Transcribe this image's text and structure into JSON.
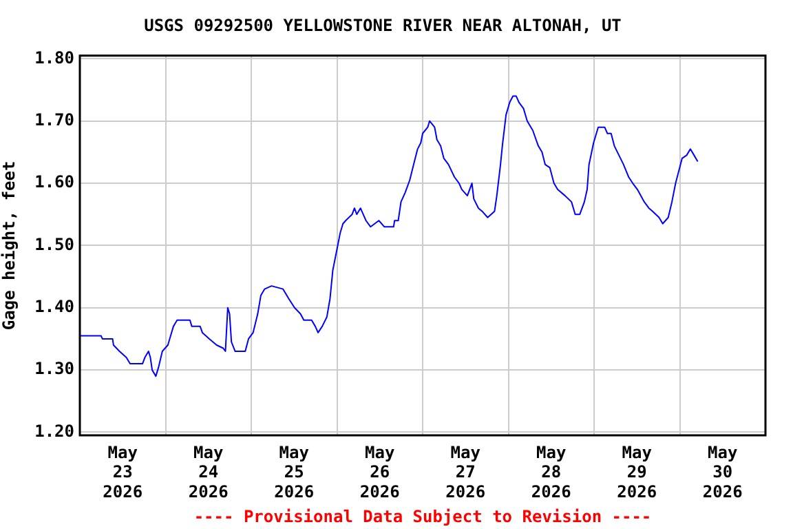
{
  "chart_data": {
    "type": "line",
    "title": "USGS 09292500 YELLOWSTONE RIVER NEAR ALTONAH, UT",
    "ylabel": "Gage height, feet",
    "annotations": [
      "---- Provisional Data Subject to Revision ----"
    ],
    "series": [
      {
        "color": "#0000ff",
        "x": [
          "2026-05-23T00:08",
          "2026-05-23T05:56",
          "2026-05-23T06:19",
          "2026-05-23T09:10",
          "2026-05-23T09:25",
          "2026-05-23T11:06",
          "2026-05-23T13:02",
          "2026-05-23T14:04",
          "2026-05-23T17:33",
          "2026-05-23T18:12",
          "2026-05-23T19:14",
          "2026-05-23T19:45",
          "2026-05-23T20:15",
          "2026-05-23T21:17",
          "2026-05-23T22:04",
          "2026-05-23T23:06",
          "2026-05-24T00:39",
          "2026-05-24T01:25",
          "2026-05-24T02:12",
          "2026-05-24T03:14",
          "2026-05-24T06:50",
          "2026-05-24T07:21",
          "2026-05-24T09:41",
          "2026-05-24T10:19",
          "2026-05-24T12:15",
          "2026-05-24T14:19",
          "2026-05-24T16:08",
          "2026-05-24T16:46",
          "2026-05-24T17:25",
          "2026-05-24T17:56",
          "2026-05-24T18:27",
          "2026-05-24T19:29",
          "2026-05-24T22:19",
          "2026-05-24T23:14",
          "2026-05-25T00:31",
          "2026-05-25T01:48",
          "2026-05-25T02:42",
          "2026-05-25T03:44",
          "2026-05-25T05:41",
          "2026-05-25T08:54",
          "2026-05-25T10:27",
          "2026-05-25T12:08",
          "2026-05-25T13:48",
          "2026-05-25T14:43",
          "2026-05-25T16:54",
          "2026-05-25T17:56",
          "2026-05-25T18:43",
          "2026-05-25T19:52",
          "2026-05-25T21:10",
          "2026-05-25T22:04",
          "2026-05-25T22:50",
          "2026-05-25T23:52",
          "2026-05-26T00:54",
          "2026-05-26T01:41",
          "2026-05-26T02:27",
          "2026-05-26T04:15",
          "2026-05-26T04:54",
          "2026-05-26T05:33",
          "2026-05-26T06:35",
          "2026-05-26T07:21",
          "2026-05-26T08:08",
          "2026-05-26T09:25",
          "2026-05-26T11:44",
          "2026-05-26T13:17",
          "2026-05-26T15:52",
          "2026-05-26T16:08",
          "2026-05-26T17:10",
          "2026-05-26T17:56",
          "2026-05-26T19:06",
          "2026-05-26T20:23",
          "2026-05-26T21:41",
          "2026-05-26T22:35",
          "2026-05-26T23:29",
          "2026-05-27T00:00",
          "2026-05-27T01:25",
          "2026-05-27T01:56",
          "2026-05-27T03:21",
          "2026-05-27T04:00",
          "2026-05-27T05:02",
          "2026-05-27T05:56",
          "2026-05-27T07:14",
          "2026-05-27T08:54",
          "2026-05-27T10:12",
          "2026-05-27T10:58",
          "2026-05-27T12:31",
          "2026-05-27T13:48",
          "2026-05-27T14:19",
          "2026-05-27T15:37",
          "2026-05-27T16:39",
          "2026-05-27T18:12",
          "2026-05-27T20:08",
          "2026-05-27T20:46",
          "2026-05-27T21:48",
          "2026-05-27T22:19",
          "2026-05-27T23:21",
          "2026-05-28T00:23",
          "2026-05-28T01:17",
          "2026-05-28T02:12",
          "2026-05-28T02:58",
          "2026-05-28T04:15",
          "2026-05-28T05:17",
          "2026-05-28T06:50",
          "2026-05-28T08:23",
          "2026-05-28T09:25",
          "2026-05-28T10:19",
          "2026-05-28T11:37",
          "2026-05-28T12:46",
          "2026-05-28T13:48",
          "2026-05-28T15:52",
          "2026-05-28T17:41",
          "2026-05-28T18:43",
          "2026-05-28T20:00",
          "2026-05-28T21:17",
          "2026-05-28T22:04",
          "2026-05-28T22:35",
          "2026-05-28T23:52",
          "2026-05-29T01:10",
          "2026-05-29T02:58",
          "2026-05-29T03:44",
          "2026-05-29T04:46",
          "2026-05-29T05:41",
          "2026-05-29T06:58",
          "2026-05-29T08:15",
          "2026-05-29T09:41",
          "2026-05-29T10:50",
          "2026-05-29T12:08",
          "2026-05-29T14:04",
          "2026-05-29T15:21",
          "2026-05-29T16:23",
          "2026-05-29T18:12",
          "2026-05-29T19:14",
          "2026-05-29T20:46",
          "2026-05-29T21:48",
          "2026-05-29T22:50",
          "2026-05-30T00:39",
          "2026-05-30T01:56",
          "2026-05-30T02:58",
          "2026-05-30T04:00",
          "2026-05-30T05:02"
        ],
        "values": [
          1.355,
          1.355,
          1.35,
          1.35,
          1.34,
          1.33,
          1.32,
          1.31,
          1.31,
          1.32,
          1.33,
          1.32,
          1.3,
          1.29,
          1.305,
          1.33,
          1.34,
          1.355,
          1.37,
          1.38,
          1.38,
          1.37,
          1.37,
          1.36,
          1.35,
          1.34,
          1.335,
          1.33,
          1.4,
          1.39,
          1.345,
          1.33,
          1.33,
          1.35,
          1.36,
          1.39,
          1.42,
          1.43,
          1.435,
          1.43,
          1.415,
          1.4,
          1.39,
          1.38,
          1.38,
          1.37,
          1.36,
          1.37,
          1.385,
          1.415,
          1.46,
          1.49,
          1.52,
          1.535,
          1.54,
          1.55,
          1.56,
          1.55,
          1.56,
          1.55,
          1.54,
          1.53,
          1.54,
          1.53,
          1.53,
          1.54,
          1.54,
          1.57,
          1.585,
          1.605,
          1.635,
          1.655,
          1.665,
          1.68,
          1.69,
          1.7,
          1.69,
          1.67,
          1.66,
          1.64,
          1.63,
          1.61,
          1.6,
          1.59,
          1.58,
          1.6,
          1.575,
          1.56,
          1.555,
          1.545,
          1.555,
          1.58,
          1.63,
          1.66,
          1.71,
          1.73,
          1.74,
          1.74,
          1.73,
          1.72,
          1.7,
          1.685,
          1.66,
          1.65,
          1.63,
          1.625,
          1.6,
          1.59,
          1.58,
          1.57,
          1.55,
          1.55,
          1.57,
          1.59,
          1.63,
          1.665,
          1.69,
          1.69,
          1.68,
          1.68,
          1.66,
          1.645,
          1.63,
          1.61,
          1.6,
          1.59,
          1.57,
          1.56,
          1.555,
          1.545,
          1.535,
          1.545,
          1.57,
          1.6,
          1.64,
          1.645,
          1.655,
          1.645,
          1.635
        ]
      }
    ],
    "xlim": [
      "2026-05-23T00:00",
      "2026-05-31T00:00"
    ],
    "xticks": [
      {
        "value": "2026-05-23T12:00",
        "label": "May 23 2026"
      },
      {
        "value": "2026-05-24T00:00",
        "label": null
      },
      {
        "value": "2026-05-24T12:00",
        "label": "May 24 2026"
      },
      {
        "value": "2026-05-25T00:00",
        "label": null
      },
      {
        "value": "2026-05-25T12:00",
        "label": "May 25 2026"
      },
      {
        "value": "2026-05-26T00:00",
        "label": null
      },
      {
        "value": "2026-05-26T12:00",
        "label": "May 26 2026"
      },
      {
        "value": "2026-05-27T00:00",
        "label": null
      },
      {
        "value": "2026-05-27T12:00",
        "label": "May 27 2026"
      },
      {
        "value": "2026-05-28T00:00",
        "label": null
      },
      {
        "value": "2026-05-28T12:00",
        "label": "May 28 2026"
      },
      {
        "value": "2026-05-29T00:00",
        "label": null
      },
      {
        "value": "2026-05-29T12:00",
        "label": "May 29 2026"
      },
      {
        "value": "2026-05-30T00:00",
        "label": null
      },
      {
        "value": "2026-05-30T12:00",
        "label": "May 30 2026"
      }
    ],
    "ylim": [
      1.195,
      1.805
    ],
    "yticks": [
      {
        "value": 1.2,
        "label": "1.20"
      },
      {
        "value": 1.3,
        "label": "1.30"
      },
      {
        "value": 1.4,
        "label": "1.40"
      },
      {
        "value": 1.5,
        "label": "1.50"
      },
      {
        "value": 1.6,
        "label": "1.60"
      },
      {
        "value": 1.7,
        "label": "1.70"
      },
      {
        "value": 1.8,
        "label": "1.80"
      }
    ],
    "grid": true,
    "legend": false
  }
}
